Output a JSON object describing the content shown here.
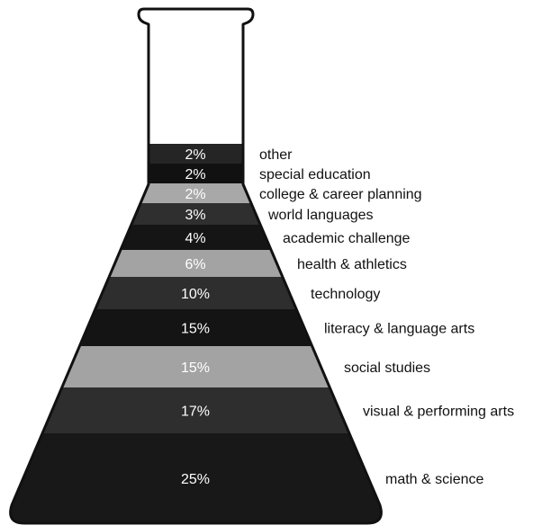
{
  "chart_data": {
    "type": "bar",
    "series": [
      {
        "categories": [
          "other",
          "special education",
          "college & career planning",
          "world languages",
          "academic challenge",
          "health & athletics",
          "technology",
          "literacy & language arts",
          "social studies",
          "visual & performing arts",
          "math & science"
        ],
        "values": [
          2,
          2,
          2,
          3,
          4,
          6,
          10,
          15,
          15,
          17,
          25
        ],
        "value_labels": [
          "2%",
          "2%",
          "2%",
          "3%",
          "4%",
          "6%",
          "10%",
          "15%",
          "15%",
          "17%",
          "25%"
        ],
        "colors": [
          "#252525",
          "#111111",
          "#a8a8a8",
          "#2f2f2f",
          "#151515",
          "#a3a3a3",
          "#2e2e2e",
          "#141414",
          "#a3a3a3",
          "#2e2e2e",
          "#181818"
        ]
      }
    ],
    "xlabel": "",
    "ylabel": "",
    "orientation": "stacked layers inside an Erlenmeyer flask outline",
    "legend": "labels placed to the right of each layer"
  },
  "colors": {
    "dark_band": "#1a1a1a",
    "light_band": "#a6a6a6",
    "outline": "#111111",
    "light_band_text": "#ffffff",
    "dark_band_text": "#ffffff"
  }
}
